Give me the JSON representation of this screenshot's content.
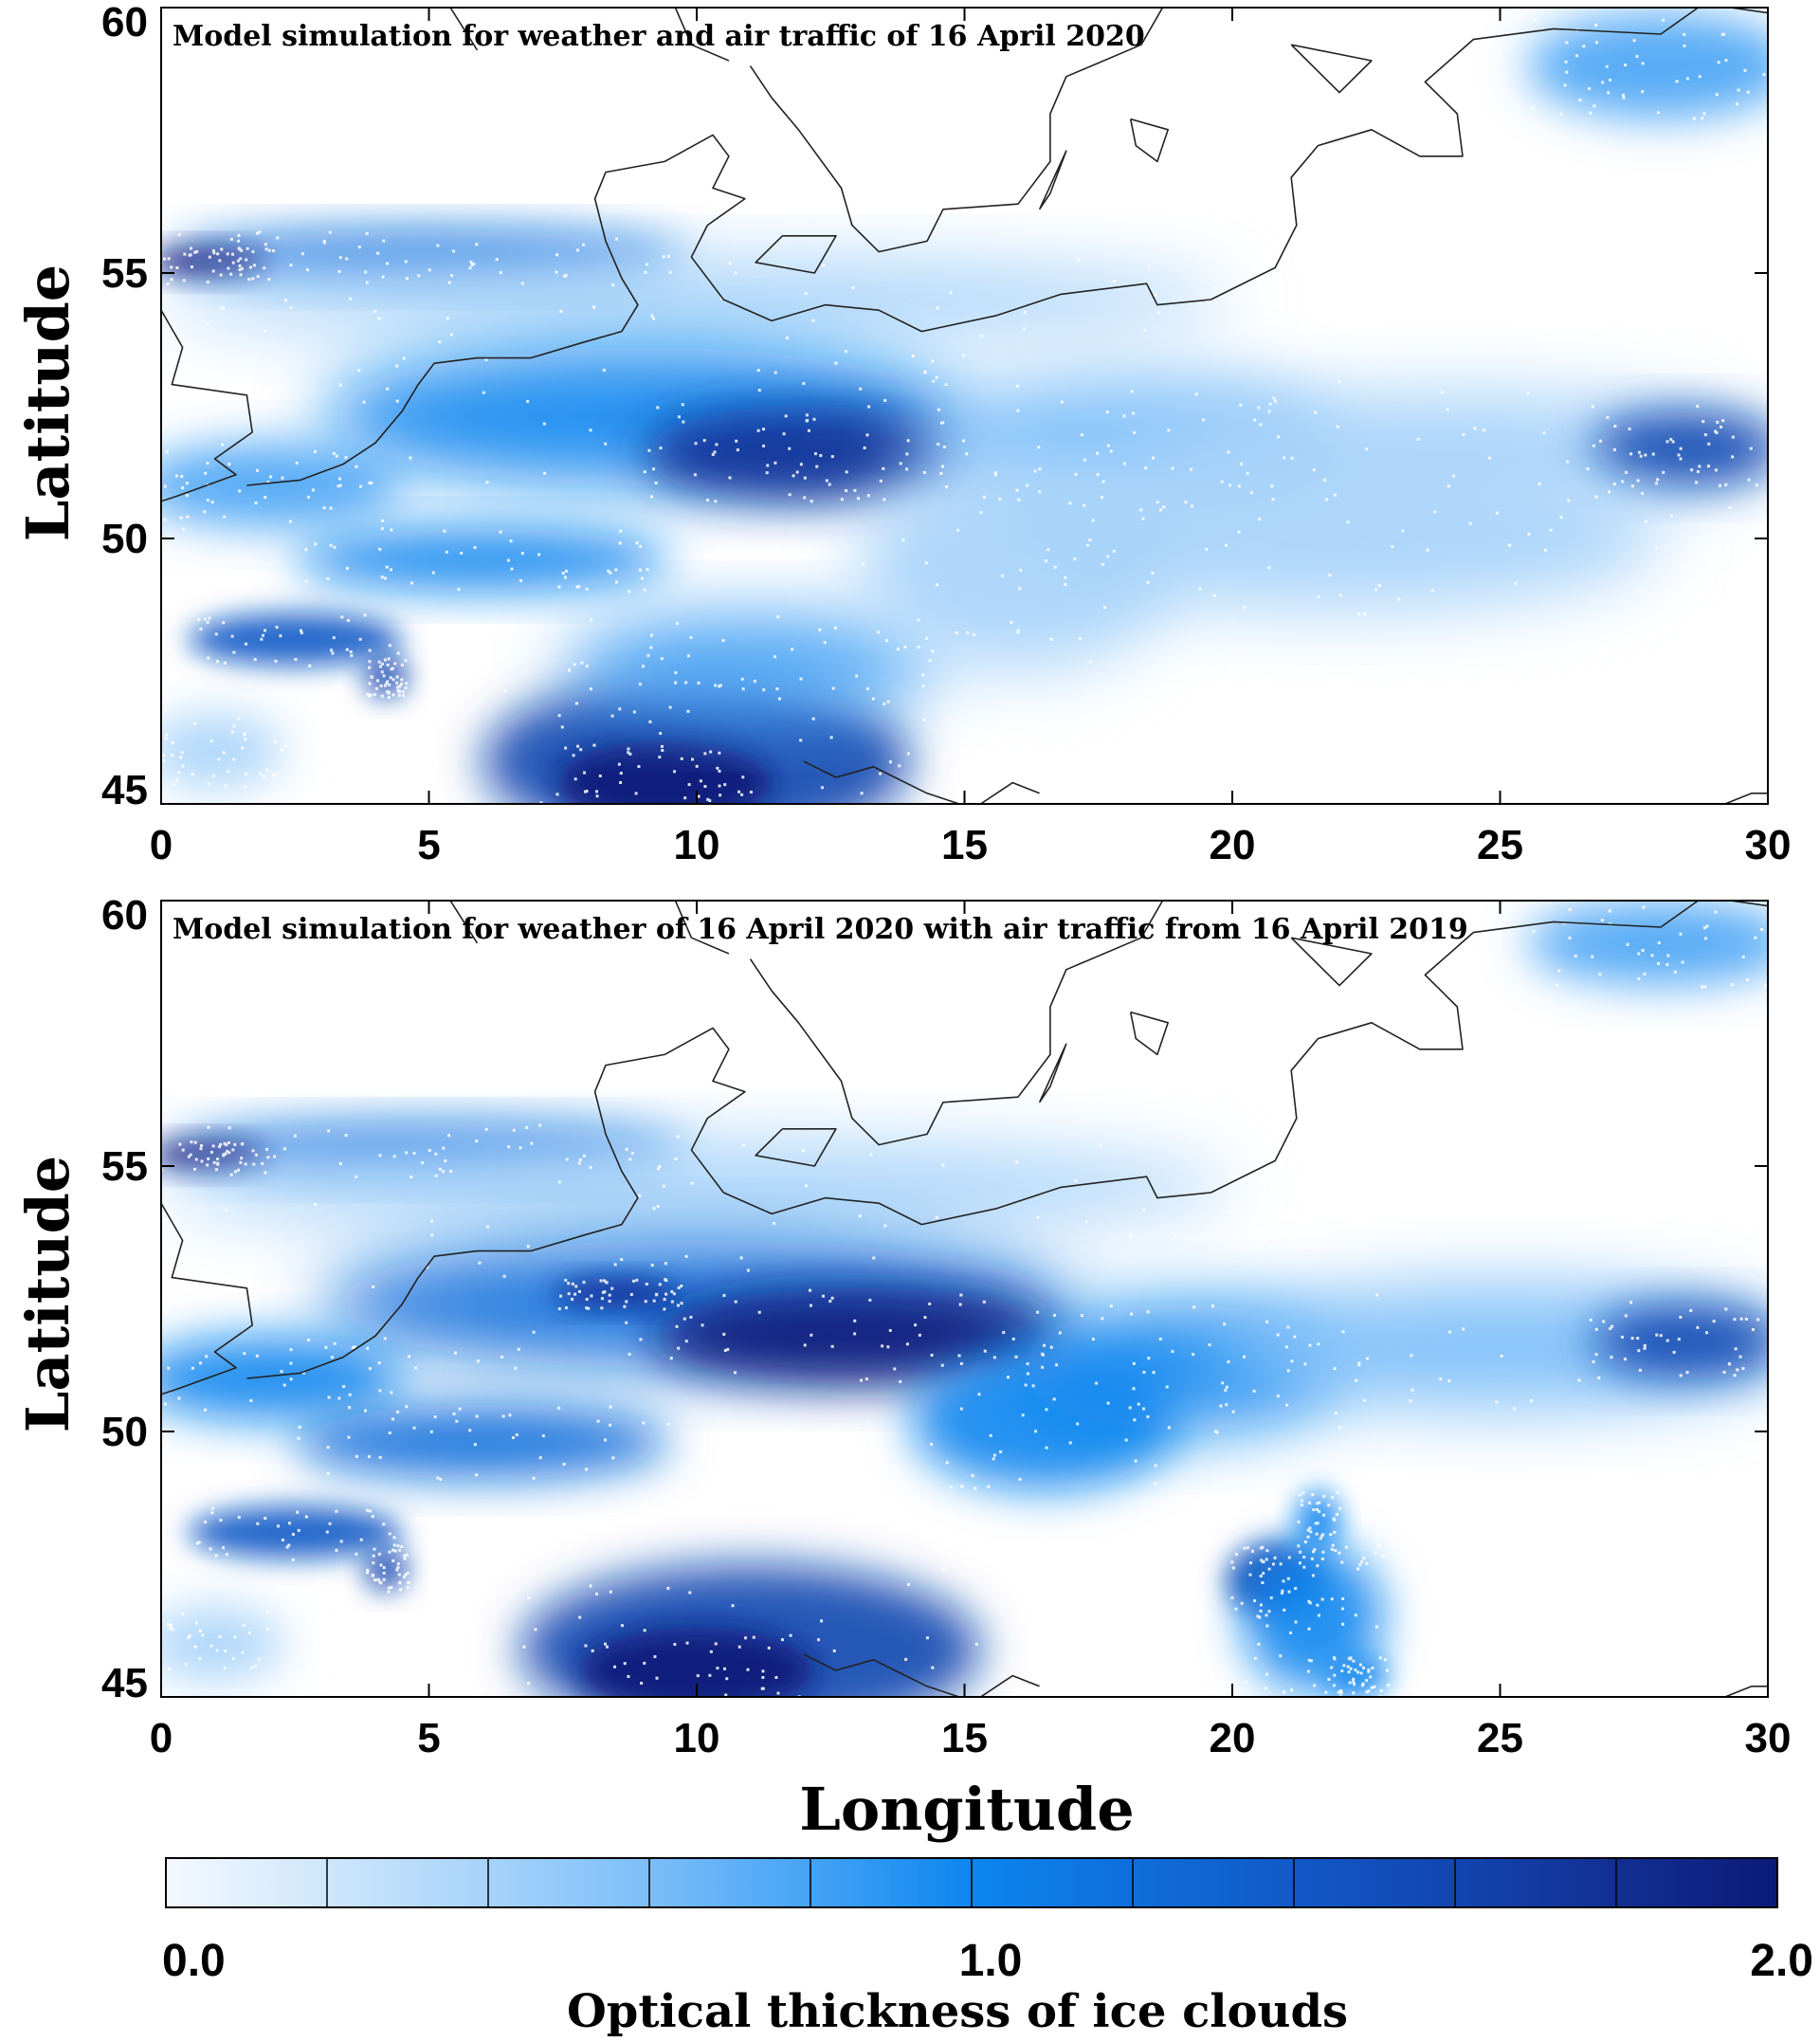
{
  "panels": [
    {
      "title": "Model simulation for weather and air traffic of 16 April 2020",
      "scenario": "actual"
    },
    {
      "title": "Model simulation for weather of 16 April 2020 with air traffic from 16 April 2019",
      "scenario": "counterfactual"
    }
  ],
  "axes": {
    "xlabel": "Longitude",
    "ylabel": "Latitude",
    "xlim": [
      0,
      30
    ],
    "ylim": [
      45,
      60
    ],
    "xticks": [
      "0",
      "5",
      "10",
      "15",
      "20",
      "25",
      "30"
    ],
    "yticks": [
      "45",
      "50",
      "55",
      "60"
    ]
  },
  "colorbar": {
    "title": "Optical thickness of ice clouds",
    "range": [
      0.0,
      2.0
    ],
    "tick_labels": [
      "0.0",
      "1.0",
      "2.0"
    ],
    "colors": [
      "#f4f9ff",
      "#cfe6fb",
      "#a6d3fa",
      "#7cbef8",
      "#45a3f5",
      "#0c86ef",
      "#0f6edb",
      "#1159c7",
      "#1245b0",
      "#122f93",
      "#0b1a78"
    ]
  },
  "chart_data": {
    "type": "heatmap",
    "variable": "Optical thickness of ice clouds",
    "xlabel": "Longitude",
    "ylabel": "Latitude",
    "xlim": [
      0,
      30
    ],
    "ylim": [
      45,
      60
    ],
    "clim": [
      0.0,
      2.0
    ],
    "panels": [
      {
        "title": "Model simulation for weather and air traffic of 16 April 2020",
        "features": [
          {
            "lon": [
              0,
              10
            ],
            "lat": [
              55,
              55.8
            ],
            "value": 1.2
          },
          {
            "lon": [
              0,
              30
            ],
            "lat": [
              52,
              54.5
            ],
            "value": 0.5
          },
          {
            "lon": [
              5,
              20
            ],
            "lat": [
              50.5,
              53
            ],
            "value": 1.0
          },
          {
            "lon": [
              10,
              14
            ],
            "lat": [
              51,
              52.5
            ],
            "value": 1.7
          },
          {
            "lon": [
              3,
              8
            ],
            "lat": [
              49,
              50.5
            ],
            "value": 1.1
          },
          {
            "lon": [
              0,
              5
            ],
            "lat": [
              47.5,
              49
            ],
            "value": 1.6
          },
          {
            "lon": [
              7,
              14
            ],
            "lat": [
              45,
              47.5
            ],
            "value": 1.8
          },
          {
            "lon": [
              14,
              30
            ],
            "lat": [
              50,
              53
            ],
            "value": 0.5
          },
          {
            "lon": [
              27,
              30
            ],
            "lat": [
              51,
              52.5
            ],
            "value": 1.6
          },
          {
            "lon": [
              26,
              30
            ],
            "lat": [
              58.5,
              60
            ],
            "value": 0.8
          }
        ]
      },
      {
        "title": "Model simulation for weather of 16 April 2020 with air traffic from 16 April 2019",
        "features": [
          {
            "lon": [
              0,
              10
            ],
            "lat": [
              55,
              55.8
            ],
            "value": 1.2
          },
          {
            "lon": [
              0,
              30
            ],
            "lat": [
              52,
              54.5
            ],
            "value": 0.6
          },
          {
            "lon": [
              5,
              20
            ],
            "lat": [
              50.5,
              53
            ],
            "value": 1.3
          },
          {
            "lon": [
              10,
              16
            ],
            "lat": [
              51,
              52.5
            ],
            "value": 1.9
          },
          {
            "lon": [
              3,
              8
            ],
            "lat": [
              49,
              50.5
            ],
            "value": 1.1
          },
          {
            "lon": [
              0,
              5
            ],
            "lat": [
              47.5,
              49
            ],
            "value": 1.6
          },
          {
            "lon": [
              7,
              15
            ],
            "lat": [
              45,
              47.5
            ],
            "value": 1.9
          },
          {
            "lon": [
              19,
              23
            ],
            "lat": [
              45.5,
              49
            ],
            "value": 1.2
          },
          {
            "lon": [
              27,
              30
            ],
            "lat": [
              51,
              52.5
            ],
            "value": 1.6
          },
          {
            "lon": [
              26,
              30
            ],
            "lat": [
              58.5,
              60
            ],
            "value": 0.8
          }
        ]
      }
    ]
  }
}
